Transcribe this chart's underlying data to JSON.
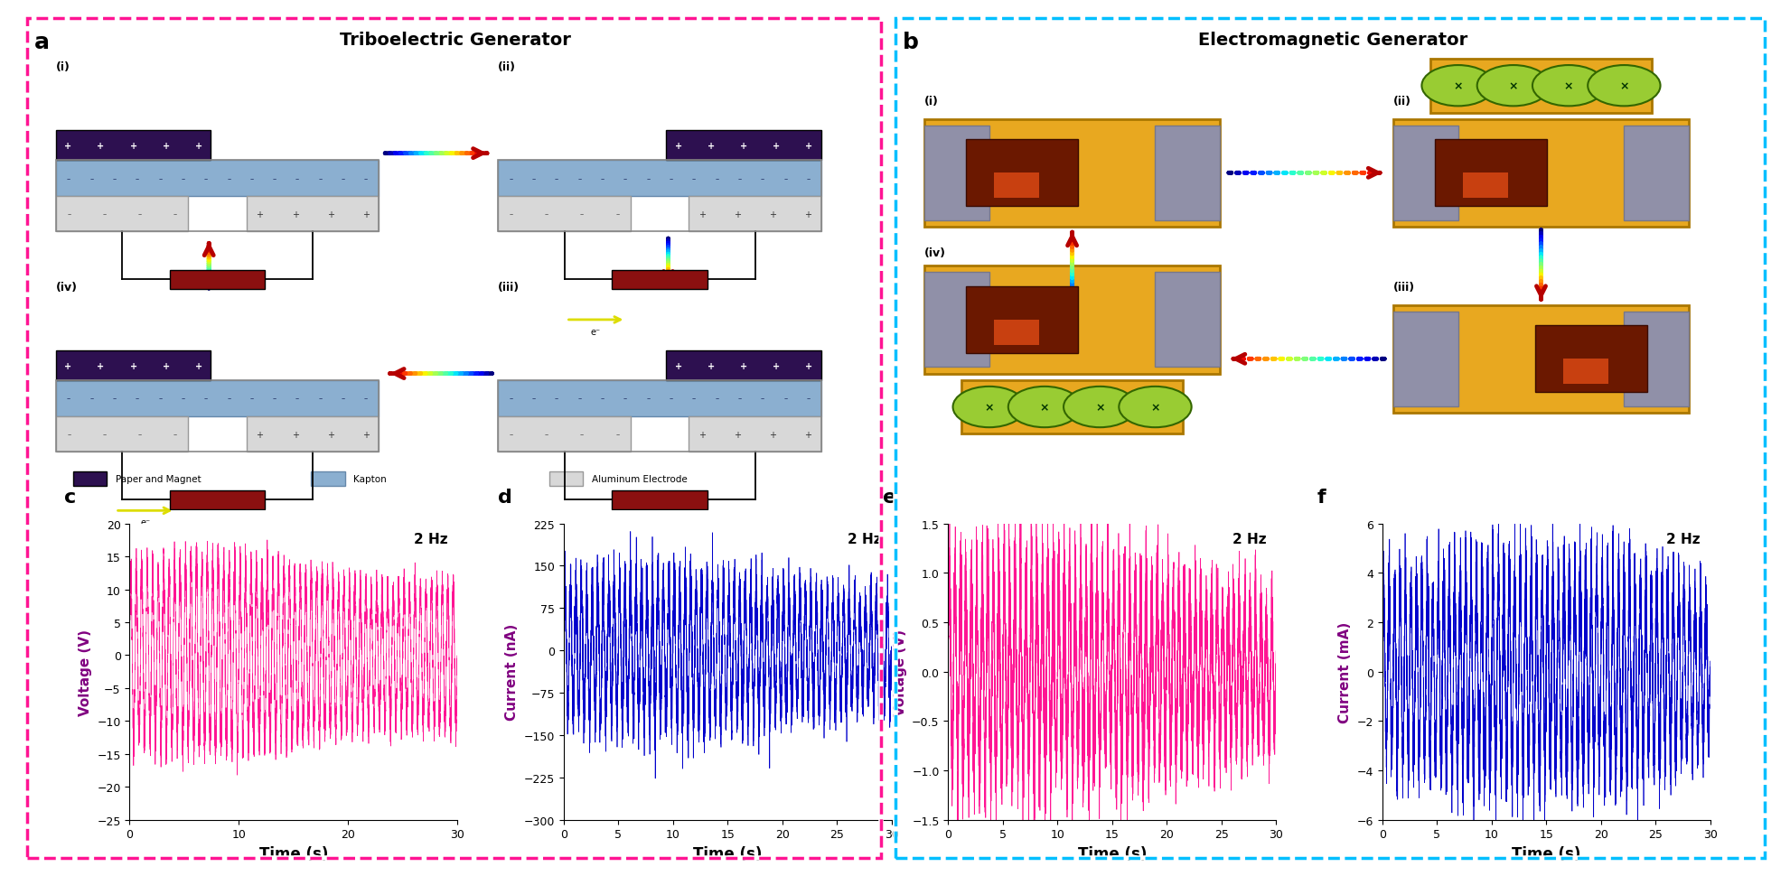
{
  "fig_width": 19.61,
  "fig_height": 9.51,
  "dpi": 100,
  "panel_a_title": "Triboelectric Generator",
  "panel_b_title": "Electromagnetic Generator",
  "label_c": "c",
  "label_d": "d",
  "label_e": "e",
  "label_f": "f",
  "label_a": "a",
  "label_b": "b",
  "freq_label": "2 Hz",
  "c_ylabel": "Voltage (V)",
  "c_xlabel": "Time (s)",
  "c_ylim": [
    -25,
    20
  ],
  "c_yticks": [
    -25,
    -20,
    -15,
    -10,
    -5,
    0,
    5,
    10,
    15,
    20
  ],
  "c_xlim": [
    0,
    30
  ],
  "c_xticks": [
    0,
    10,
    20,
    30
  ],
  "d_ylabel": "Current (nA)",
  "d_xlabel": "Time (s)",
  "d_ylim": [
    -300,
    225
  ],
  "d_yticks": [
    -300,
    -225,
    -150,
    -75,
    0,
    75,
    150,
    225
  ],
  "d_xlim": [
    0,
    30
  ],
  "d_xticks": [
    0,
    5,
    10,
    15,
    20,
    25,
    30
  ],
  "e_ylabel": "Voltage (V)",
  "e_xlabel": "Time (s)",
  "e_ylim": [
    -1.5,
    1.5
  ],
  "e_yticks": [
    -1.5,
    -1.0,
    -0.5,
    0.0,
    0.5,
    1.0,
    1.5
  ],
  "e_xlim": [
    0,
    30
  ],
  "e_xticks": [
    0,
    5,
    10,
    15,
    20,
    25,
    30
  ],
  "f_ylabel": "Current (mA)",
  "f_xlabel": "Time (s)",
  "f_ylim": [
    -6,
    6
  ],
  "f_yticks": [
    -6,
    -4,
    -2,
    0,
    2,
    4,
    6
  ],
  "f_xlim": [
    0,
    30
  ],
  "f_xticks": [
    0,
    5,
    10,
    15,
    20,
    25,
    30
  ],
  "pink_color": "#FF1493",
  "blue_color": "#0000CC",
  "ylabel_color": "#800080",
  "paper_magnet_color": "#2D1050",
  "kapton_color": "#8BAFD0",
  "aluminum_color": "#D8D8D8",
  "resistor_color": "#8B1010",
  "gold_color": "#E8A820",
  "legend_paper": "Paper and Magnet",
  "legend_kapton": "Kapton",
  "legend_aluminum": "Aluminum Electrode",
  "pink_border": "#FF1493",
  "cyan_border": "#00BFFF"
}
